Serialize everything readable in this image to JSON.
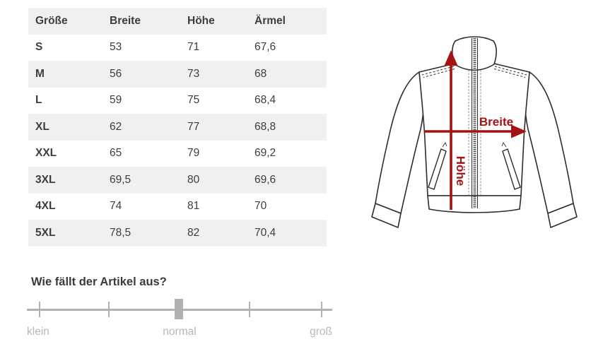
{
  "size_table": {
    "columns": [
      "Größe",
      "Breite",
      "Höhe",
      "Ärmel"
    ],
    "rows": [
      [
        "S",
        "53",
        "71",
        "67,6"
      ],
      [
        "M",
        "56",
        "73",
        "68"
      ],
      [
        "L",
        "59",
        "75",
        "68,4"
      ],
      [
        "XL",
        "62",
        "77",
        "68,8"
      ],
      [
        "XXL",
        "65",
        "79",
        "69,2"
      ],
      [
        "3XL",
        "69,5",
        "80",
        "69,6"
      ],
      [
        "4XL",
        "74",
        "81",
        "70"
      ],
      [
        "5XL",
        "78,5",
        "82",
        "70,4"
      ]
    ],
    "stripe_color": "#f0f0f0"
  },
  "fit": {
    "question": "Wie fällt der Artikel aus?",
    "labels": {
      "left": "klein",
      "center": "normal",
      "right": "groß"
    },
    "value": "normal",
    "slider_color": "#b1b1b1"
  },
  "diagram": {
    "width_label": "Breite",
    "height_label": "Höhe",
    "arrow_color": "#a41212",
    "line_color": "#2d2d2d"
  }
}
